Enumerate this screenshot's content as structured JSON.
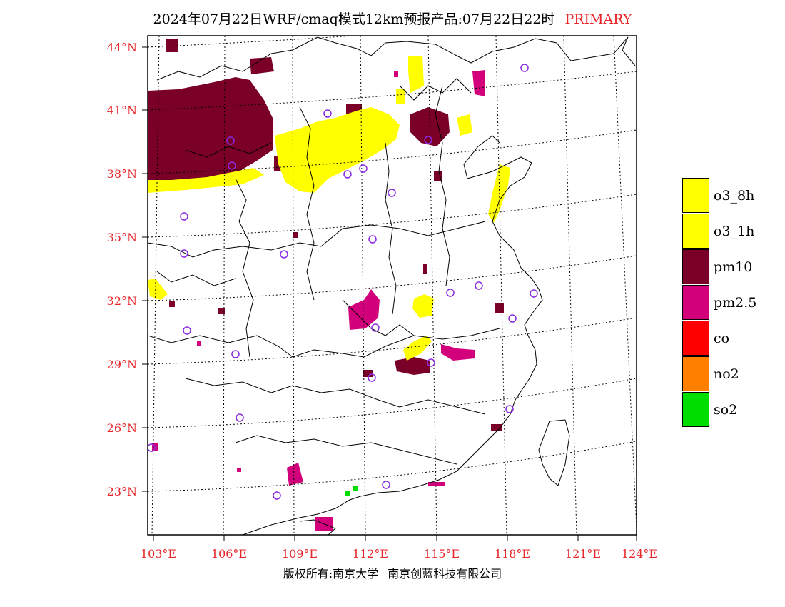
{
  "header": {
    "title": "2024年07月22日WRF/cmaq模式12km预报产品:07月22日22时",
    "tag": "PRIMARY"
  },
  "map": {
    "lat_labels": [
      "44°N",
      "41°N",
      "38°N",
      "35°N",
      "32°N",
      "29°N",
      "26°N",
      "23°N"
    ],
    "lon_labels": [
      "103°E",
      "106°E",
      "109°E",
      "112°E",
      "115°E",
      "118°E",
      "121°E",
      "124°E"
    ]
  },
  "legend": {
    "items": [
      {
        "label": "o3_8h",
        "color": "#ffff00"
      },
      {
        "label": "o3_1h",
        "color": "#ffff00"
      },
      {
        "label": "pm10",
        "color": "#7a0028"
      },
      {
        "label": "pm2.5",
        "color": "#d2007a"
      },
      {
        "label": "co",
        "color": "#ff0000"
      },
      {
        "label": "no2",
        "color": "#ff8000"
      },
      {
        "label": "so2",
        "color": "#00dd00"
      }
    ]
  },
  "footer": {
    "left": "版权所有:南京大学",
    "right": "南京创蓝科技有限公司"
  },
  "colors": {
    "label_red": "#e8262a",
    "station_purple": "#8a2be2"
  }
}
